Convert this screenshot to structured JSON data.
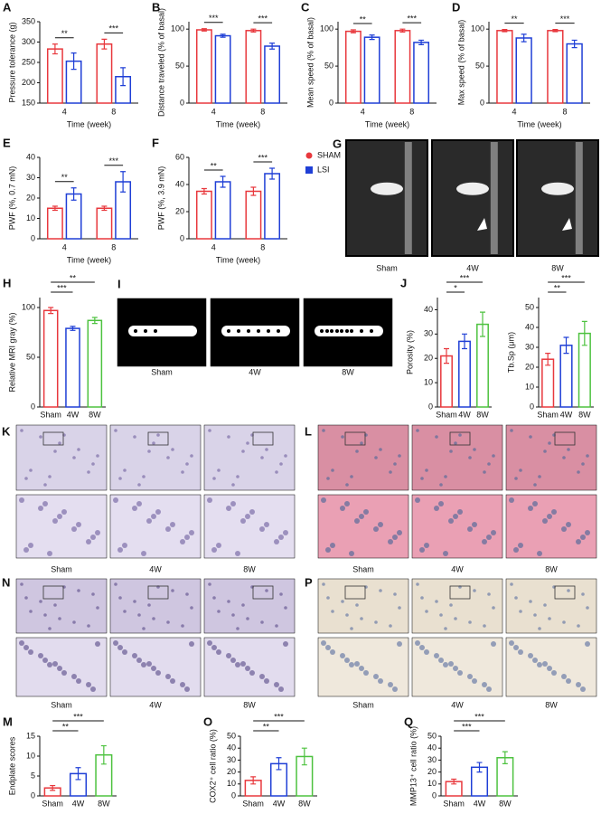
{
  "chart_data": [
    {
      "panel": "A",
      "type": "bar",
      "y_label": "Pressure tolerance (g)",
      "x_label": "Time (week)",
      "categories": [
        "4",
        "8"
      ],
      "series": [
        {
          "name": "SHAM",
          "color": "#e8383d",
          "values": [
            283,
            295
          ],
          "errors": [
            12,
            12
          ]
        },
        {
          "name": "LSI",
          "color": "#1f3fd6",
          "values": [
            253,
            215
          ],
          "errors": [
            20,
            22
          ]
        }
      ],
      "ylim": [
        150,
        350
      ],
      "yticks": [
        150,
        200,
        250,
        300,
        350
      ],
      "significance": [
        "**",
        "***"
      ]
    },
    {
      "panel": "B",
      "type": "bar",
      "y_label": "Distance traveled (% of basal)",
      "x_label": "Time (week)",
      "categories": [
        "4",
        "8"
      ],
      "series": [
        {
          "name": "SHAM",
          "color": "#e8383d",
          "values": [
            99,
            98
          ],
          "errors": [
            1.5,
            2
          ]
        },
        {
          "name": "LSI",
          "color": "#1f3fd6",
          "values": [
            91,
            77
          ],
          "errors": [
            2,
            4
          ]
        }
      ],
      "ylim": [
        0,
        110
      ],
      "yticks": [
        0,
        50,
        100
      ],
      "significance": [
        "***",
        "***"
      ]
    },
    {
      "panel": "C",
      "type": "bar",
      "y_label": "Mean speed (% of basal)",
      "x_label": "Time (week)",
      "categories": [
        "4",
        "8"
      ],
      "series": [
        {
          "name": "SHAM",
          "color": "#e8383d",
          "values": [
            97,
            98
          ],
          "errors": [
            2,
            2
          ]
        },
        {
          "name": "LSI",
          "color": "#1f3fd6",
          "values": [
            89,
            82
          ],
          "errors": [
            3,
            3
          ]
        }
      ],
      "ylim": [
        0,
        110
      ],
      "yticks": [
        0,
        50,
        100
      ],
      "significance": [
        "**",
        "***"
      ]
    },
    {
      "panel": "D",
      "type": "bar",
      "y_label": "Max speed (% of basal)",
      "x_label": "Time (week)",
      "categories": [
        "4",
        "8"
      ],
      "series": [
        {
          "name": "SHAM",
          "color": "#e8383d",
          "values": [
            98,
            98
          ],
          "errors": [
            1.5,
            1.5
          ]
        },
        {
          "name": "LSI",
          "color": "#1f3fd6",
          "values": [
            88,
            80
          ],
          "errors": [
            5,
            5
          ]
        }
      ],
      "ylim": [
        0,
        110
      ],
      "yticks": [
        0,
        50,
        100
      ],
      "significance": [
        "**",
        "***"
      ]
    },
    {
      "panel": "E",
      "type": "bar",
      "y_label": "PWF (%, 0.7 mN)",
      "x_label": "Time (week)",
      "categories": [
        "4",
        "8"
      ],
      "series": [
        {
          "name": "SHAM",
          "color": "#e8383d",
          "values": [
            15,
            15
          ],
          "errors": [
            1,
            1
          ]
        },
        {
          "name": "LSI",
          "color": "#1f3fd6",
          "values": [
            22,
            28
          ],
          "errors": [
            3,
            5
          ]
        }
      ],
      "ylim": [
        0,
        40
      ],
      "yticks": [
        0,
        10,
        20,
        30,
        40
      ],
      "significance": [
        "**",
        "***"
      ]
    },
    {
      "panel": "F",
      "type": "bar",
      "y_label": "PWF (%, 3.9 mN)",
      "x_label": "Time (week)",
      "categories": [
        "4",
        "8"
      ],
      "series": [
        {
          "name": "SHAM",
          "color": "#e8383d",
          "values": [
            35,
            35
          ],
          "errors": [
            2,
            3
          ]
        },
        {
          "name": "LSI",
          "color": "#1f3fd6",
          "values": [
            42,
            48
          ],
          "errors": [
            4,
            4
          ]
        }
      ],
      "ylim": [
        0,
        60
      ],
      "yticks": [
        0,
        20,
        40,
        60
      ],
      "significance": [
        "**",
        "***"
      ],
      "legend": "right"
    },
    {
      "panel": "H",
      "type": "bar",
      "y_label": "Relative MRI gray (%)",
      "categories": [
        "Sham",
        "4W",
        "8W"
      ],
      "colors": [
        "#e8383d",
        "#1f3fd6",
        "#4dc23f"
      ],
      "values": [
        97,
        79,
        87
      ],
      "errors": [
        3,
        2,
        3
      ],
      "ylim": [
        0,
        110
      ],
      "yticks": [
        0,
        50,
        100
      ],
      "significance": [
        "***",
        "**"
      ]
    },
    {
      "panel": "J",
      "type": "bar",
      "y_label": "Porosity (%)",
      "categories": [
        "Sham",
        "4W",
        "8W"
      ],
      "colors": [
        "#e8383d",
        "#1f3fd6",
        "#4dc23f"
      ],
      "values": [
        21,
        27,
        34
      ],
      "errors": [
        3,
        3,
        5
      ],
      "ylim": [
        0,
        45
      ],
      "yticks": [
        0,
        10,
        20,
        30,
        40
      ],
      "significance": [
        "*",
        "***"
      ]
    },
    {
      "type": "bar",
      "y_label": "Tb.Sp (μm)",
      "categories": [
        "Sham",
        "4W",
        "8W"
      ],
      "colors": [
        "#e8383d",
        "#1f3fd6",
        "#4dc23f"
      ],
      "values": [
        24,
        31,
        37
      ],
      "errors": [
        3,
        4,
        6
      ],
      "ylim": [
        0,
        55
      ],
      "yticks": [
        0,
        10,
        20,
        30,
        40,
        50
      ],
      "significance": [
        "**",
        "***"
      ]
    },
    {
      "panel": "M",
      "type": "bar",
      "y_label": "Endplate scores",
      "categories": [
        "Sham",
        "4W",
        "8W"
      ],
      "colors": [
        "#e8383d",
        "#1f3fd6",
        "#4dc23f"
      ],
      "values": [
        2,
        5.6,
        10.3
      ],
      "errors": [
        0.6,
        1.5,
        2.3
      ],
      "ylim": [
        0,
        15
      ],
      "yticks": [
        0,
        5,
        10,
        15
      ],
      "significance": [
        "**",
        "***"
      ]
    },
    {
      "panel": "O",
      "type": "bar",
      "y_label": "COX2⁺ cell ratio (%)",
      "categories": [
        "Sham",
        "4W",
        "8W"
      ],
      "colors": [
        "#e8383d",
        "#1f3fd6",
        "#4dc23f"
      ],
      "values": [
        13,
        27,
        33
      ],
      "errors": [
        3,
        5,
        7
      ],
      "ylim": [
        0,
        50
      ],
      "yticks": [
        0,
        10,
        20,
        30,
        40,
        50
      ],
      "significance": [
        "**",
        "***"
      ]
    },
    {
      "panel": "Q",
      "type": "bar",
      "y_label": "MMP13⁺ cell ratio (%)",
      "categories": [
        "Sham",
        "4W",
        "8W"
      ],
      "colors": [
        "#e8383d",
        "#1f3fd6",
        "#4dc23f"
      ],
      "values": [
        12,
        24,
        32
      ],
      "errors": [
        2,
        4,
        5
      ],
      "ylim": [
        0,
        50
      ],
      "yticks": [
        0,
        10,
        20,
        30,
        40,
        50
      ],
      "significance": [
        "***",
        "***"
      ]
    }
  ],
  "image_panels": [
    {
      "panel": "G",
      "labels": [
        "Sham",
        "4W",
        "8W"
      ]
    },
    {
      "panel": "I",
      "labels": [
        "Sham",
        "4W",
        "8W"
      ]
    },
    {
      "panel": "K",
      "labels": [
        "Sham",
        "4W",
        "8W"
      ]
    },
    {
      "panel": "L",
      "labels": [
        "Sham",
        "4W",
        "8W"
      ]
    },
    {
      "panel": "N",
      "labels": [
        "Sham",
        "4W",
        "8W"
      ]
    },
    {
      "panel": "P",
      "labels": [
        "Sham",
        "4W",
        "8W"
      ]
    }
  ]
}
